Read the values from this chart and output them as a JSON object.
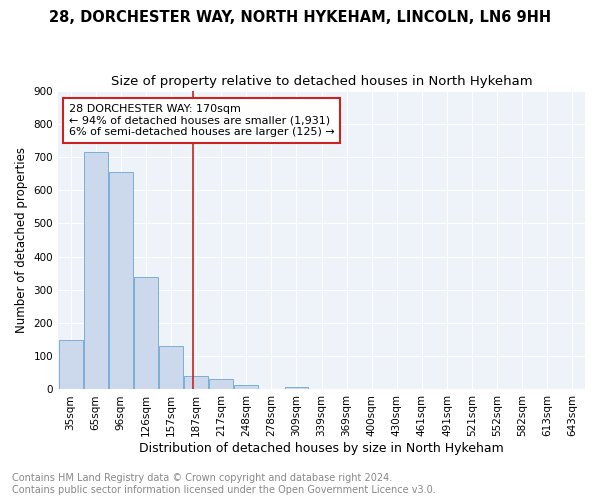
{
  "title1": "28, DORCHESTER WAY, NORTH HYKEHAM, LINCOLN, LN6 9HH",
  "title2": "Size of property relative to detached houses in North Hykeham",
  "xlabel": "Distribution of detached houses by size in North Hykeham",
  "ylabel": "Number of detached properties",
  "bar_labels": [
    "35sqm",
    "65sqm",
    "96sqm",
    "126sqm",
    "157sqm",
    "187sqm",
    "217sqm",
    "248sqm",
    "278sqm",
    "309sqm",
    "339sqm",
    "369sqm",
    "400sqm",
    "430sqm",
    "461sqm",
    "491sqm",
    "521sqm",
    "552sqm",
    "582sqm",
    "613sqm",
    "643sqm"
  ],
  "bar_values": [
    150,
    715,
    655,
    340,
    130,
    42,
    30,
    12,
    0,
    8,
    0,
    0,
    0,
    0,
    0,
    0,
    0,
    0,
    0,
    0,
    0
  ],
  "bar_color": "#ccd9ec",
  "bar_edgecolor": "#7aafd4",
  "vline_x": 4.87,
  "vline_color": "#cc2222",
  "annotation_line1": "28 DORCHESTER WAY: 170sqm",
  "annotation_line2": "← 94% of detached houses are smaller (1,931)",
  "annotation_line3": "6% of semi-detached houses are larger (125) →",
  "annotation_box_edgecolor": "#cc2222",
  "annotation_box_facecolor": "#ffffff",
  "ylim": [
    0,
    900
  ],
  "yticks": [
    0,
    100,
    200,
    300,
    400,
    500,
    600,
    700,
    800,
    900
  ],
  "footer": "Contains HM Land Registry data © Crown copyright and database right 2024.\nContains public sector information licensed under the Open Government Licence v3.0.",
  "background_color": "#eef2f9",
  "grid_color": "#ffffff",
  "title1_fontsize": 10.5,
  "title2_fontsize": 9.5,
  "ylabel_fontsize": 8.5,
  "xlabel_fontsize": 9,
  "tick_fontsize": 7.5,
  "annotation_fontsize": 8,
  "footer_fontsize": 7
}
